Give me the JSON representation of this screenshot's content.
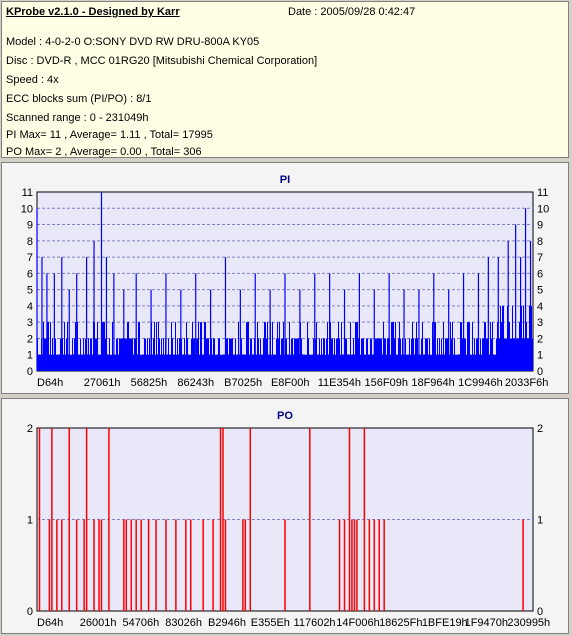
{
  "header": {
    "title": "KProbe v2.1.0 - Designed by Karr",
    "date": "Date : 2005/09/28 0:42:47",
    "lines": [
      "Model : 4-0-2-0 O:SONY    DVD RW DRU-800A  KY05",
      "Disc : DVD-R , MCC 01RG20   [Mitsubishi Chemical Corporation]",
      "Speed : 4x",
      "ECC blocks sum (PI/PO) : 8/1",
      "Scanned range : 0 - 231049h",
      "PI Max= 11 , Average= 1.11 , Total= 17995",
      "PO Max= 2 , Average= 0.00 , Total= 306"
    ]
  },
  "colors": {
    "pi": "#0000ff",
    "po": "#ff0000",
    "grid": "#8080c0",
    "title": "#000080"
  },
  "chart_data": [
    {
      "type": "bar",
      "title": "PI",
      "ylim": [
        0,
        11
      ],
      "yticks": [
        0,
        1,
        2,
        3,
        4,
        5,
        6,
        7,
        8,
        9,
        10,
        11
      ],
      "xticklabels": [
        "D64h",
        "27061h",
        "56825h",
        "86243h",
        "B7025h",
        "E8F00h",
        "11E354h",
        "156F09h",
        "18F964h",
        "1C9946h",
        "2033F6h"
      ],
      "x_range_hex": [
        "0",
        "231049h"
      ],
      "spikes": [
        {
          "x": 0.0,
          "v": 10
        },
        {
          "x": 0.01,
          "v": 7
        },
        {
          "x": 0.02,
          "v": 6
        },
        {
          "x": 0.035,
          "v": 6
        },
        {
          "x": 0.05,
          "v": 7
        },
        {
          "x": 0.065,
          "v": 5
        },
        {
          "x": 0.08,
          "v": 6
        },
        {
          "x": 0.1,
          "v": 7
        },
        {
          "x": 0.115,
          "v": 8
        },
        {
          "x": 0.13,
          "v": 11
        },
        {
          "x": 0.14,
          "v": 7
        },
        {
          "x": 0.155,
          "v": 6
        },
        {
          "x": 0.175,
          "v": 5
        },
        {
          "x": 0.2,
          "v": 6
        },
        {
          "x": 0.23,
          "v": 5
        },
        {
          "x": 0.26,
          "v": 6
        },
        {
          "x": 0.29,
          "v": 5
        },
        {
          "x": 0.32,
          "v": 6
        },
        {
          "x": 0.35,
          "v": 5
        },
        {
          "x": 0.38,
          "v": 7
        },
        {
          "x": 0.41,
          "v": 5
        },
        {
          "x": 0.44,
          "v": 6
        },
        {
          "x": 0.47,
          "v": 5
        },
        {
          "x": 0.5,
          "v": 6
        },
        {
          "x": 0.53,
          "v": 5
        },
        {
          "x": 0.56,
          "v": 6
        },
        {
          "x": 0.59,
          "v": 6
        },
        {
          "x": 0.62,
          "v": 5
        },
        {
          "x": 0.65,
          "v": 6
        },
        {
          "x": 0.68,
          "v": 5
        },
        {
          "x": 0.71,
          "v": 6
        },
        {
          "x": 0.74,
          "v": 5
        },
        {
          "x": 0.77,
          "v": 5
        },
        {
          "x": 0.8,
          "v": 6
        },
        {
          "x": 0.83,
          "v": 5
        },
        {
          "x": 0.86,
          "v": 6
        },
        {
          "x": 0.89,
          "v": 6
        },
        {
          "x": 0.91,
          "v": 7
        },
        {
          "x": 0.93,
          "v": 7
        },
        {
          "x": 0.95,
          "v": 8
        },
        {
          "x": 0.965,
          "v": 9
        },
        {
          "x": 0.975,
          "v": 7
        },
        {
          "x": 0.985,
          "v": 10
        },
        {
          "x": 0.995,
          "v": 8
        }
      ]
    },
    {
      "type": "bar",
      "title": "PO",
      "ylim": [
        0,
        2
      ],
      "yticks": [
        0,
        1,
        2
      ],
      "xticklabels": [
        "D64h",
        "26001h",
        "54706h",
        "83026h",
        "B2946h",
        "E355Eh",
        "117602h",
        "14F006h",
        "18625Fh",
        "1BFE19h",
        "1F9470h",
        "230995h"
      ],
      "x_range_hex": [
        "0",
        "230995h"
      ],
      "values_at_fraction": [
        {
          "x": 0.005,
          "v": 2
        },
        {
          "x": 0.025,
          "v": 1
        },
        {
          "x": 0.03,
          "v": 2
        },
        {
          "x": 0.04,
          "v": 1
        },
        {
          "x": 0.05,
          "v": 1
        },
        {
          "x": 0.065,
          "v": 2
        },
        {
          "x": 0.08,
          "v": 1
        },
        {
          "x": 0.095,
          "v": 1
        },
        {
          "x": 0.1,
          "v": 2
        },
        {
          "x": 0.115,
          "v": 1
        },
        {
          "x": 0.125,
          "v": 1
        },
        {
          "x": 0.13,
          "v": 1
        },
        {
          "x": 0.145,
          "v": 2
        },
        {
          "x": 0.175,
          "v": 1
        },
        {
          "x": 0.18,
          "v": 1
        },
        {
          "x": 0.19,
          "v": 1
        },
        {
          "x": 0.2,
          "v": 1
        },
        {
          "x": 0.21,
          "v": 1
        },
        {
          "x": 0.225,
          "v": 1
        },
        {
          "x": 0.24,
          "v": 1
        },
        {
          "x": 0.26,
          "v": 1
        },
        {
          "x": 0.28,
          "v": 1
        },
        {
          "x": 0.3,
          "v": 1
        },
        {
          "x": 0.31,
          "v": 1
        },
        {
          "x": 0.335,
          "v": 1
        },
        {
          "x": 0.355,
          "v": 1
        },
        {
          "x": 0.37,
          "v": 2
        },
        {
          "x": 0.375,
          "v": 2
        },
        {
          "x": 0.38,
          "v": 1
        },
        {
          "x": 0.415,
          "v": 1
        },
        {
          "x": 0.42,
          "v": 1
        },
        {
          "x": 0.43,
          "v": 2
        },
        {
          "x": 0.5,
          "v": 1
        },
        {
          "x": 0.55,
          "v": 2
        },
        {
          "x": 0.61,
          "v": 1
        },
        {
          "x": 0.62,
          "v": 1
        },
        {
          "x": 0.63,
          "v": 2
        },
        {
          "x": 0.635,
          "v": 1
        },
        {
          "x": 0.64,
          "v": 1
        },
        {
          "x": 0.645,
          "v": 1
        },
        {
          "x": 0.66,
          "v": 2
        },
        {
          "x": 0.67,
          "v": 1
        },
        {
          "x": 0.68,
          "v": 1
        },
        {
          "x": 0.69,
          "v": 1
        },
        {
          "x": 0.7,
          "v": 1
        },
        {
          "x": 0.98,
          "v": 1
        }
      ]
    }
  ]
}
